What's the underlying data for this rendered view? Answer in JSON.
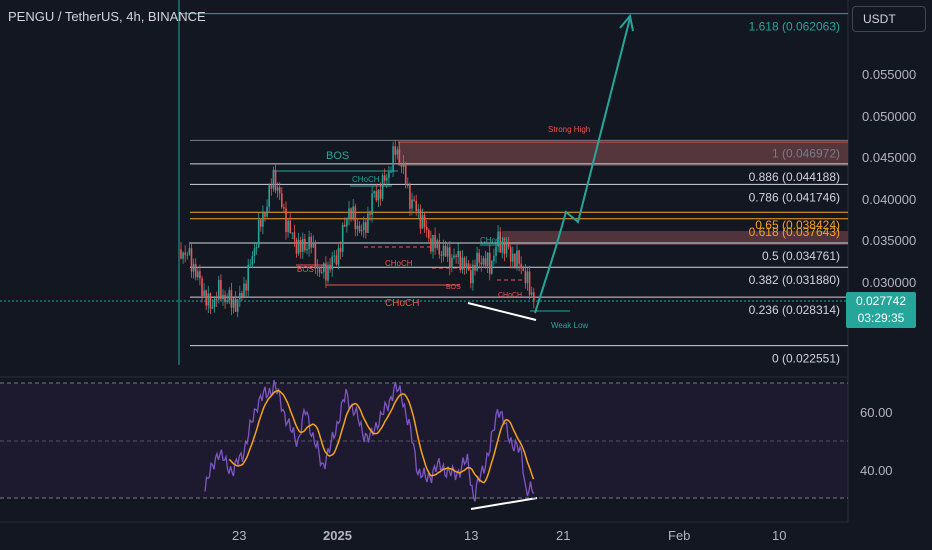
{
  "header": {
    "title": "PENGU / TetherUS, 4h, BINANCE"
  },
  "currency_badge": "USDT",
  "price_tag": {
    "price": "0.027742",
    "countdown": "03:29:35",
    "color": "#26a69a"
  },
  "price_axis": [
    "0.055000",
    "0.050000",
    "0.045000",
    "0.040000",
    "0.035000",
    "0.030000"
  ],
  "rsi_axis": [
    "60.00",
    "40.00"
  ],
  "time_axis": [
    "23",
    "2025",
    "13",
    "21",
    "Feb",
    "10"
  ],
  "fib_levels": [
    {
      "label": "1.618 (0.062063)",
      "price": 0.062063,
      "color": "#26a69a"
    },
    {
      "label": "1 (0.046972)",
      "price": 0.046972,
      "color": "#787b86"
    },
    {
      "label": "0.886 (0.044188)",
      "price": 0.044188,
      "color": "#d1d4dc"
    },
    {
      "label": "0.786 (0.041746)",
      "price": 0.041746,
      "color": "#d1d4dc"
    },
    {
      "label": "0.65 (0.038424)",
      "price": 0.038424,
      "color": "#f7a21b"
    },
    {
      "label": "0.618 (0.037643)",
      "price": 0.037643,
      "color": "#f7a21b"
    },
    {
      "label": "0.5 (0.034761)",
      "price": 0.034761,
      "color": "#d1d4dc"
    },
    {
      "label": "0.382 (0.031880)",
      "price": 0.03188,
      "color": "#d1d4dc"
    },
    {
      "label": "0.236 (0.028314)",
      "price": 0.028314,
      "color": "#d1d4dc"
    },
    {
      "label": "0 (0.022551)",
      "price": 0.022551,
      "color": "#d1d4dc"
    }
  ],
  "annotations": {
    "bos_top": "BOS",
    "bos_left": "BOS",
    "bos_right": "BOS",
    "choch_1": "CHoCH",
    "choch_2": "CHoCH",
    "choch_3": "CHoCH",
    "choch_4": "CHoCH",
    "choch_5": "CHoCH",
    "strong_high": "Strong High",
    "weak_low": "Weak Low"
  },
  "colors": {
    "background": "#131722",
    "bull": "#26a69a",
    "bear": "#ef5350",
    "rsi": "#7e57c2",
    "rsi_ma": "#f7a21b",
    "supply_zone": "#5d3a40"
  }
}
